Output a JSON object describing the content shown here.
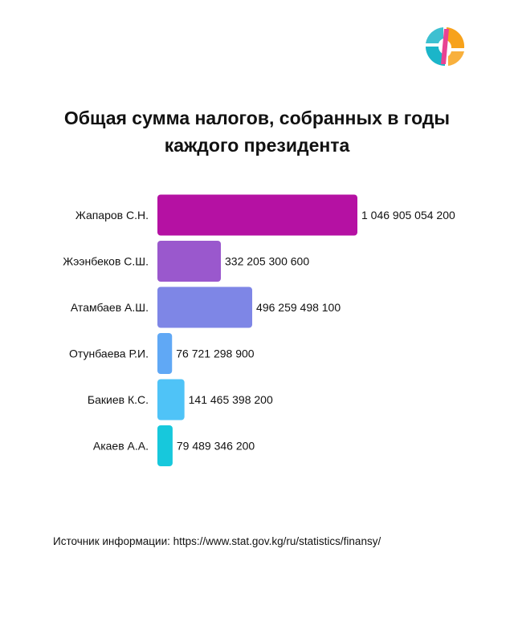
{
  "brand": {
    "logo_icon": "brand-logo-icon",
    "colors": {
      "magenta": "#E84393",
      "teal": "#1BB5C9",
      "orange": "#F7A21B"
    }
  },
  "chart_data": {
    "type": "bar",
    "orientation": "horizontal",
    "title": "Общая сумма налогов, собранных в годы каждого президента",
    "title_lines": [
      "Общая сумма налогов, собранных в годы",
      "каждого президента"
    ],
    "categories": [
      "Жапаров С.Н.",
      "Жээнбеков С.Ш.",
      "Атамбаев А.Ш.",
      "Отунбаева Р.И.",
      "Бакиев К.С.",
      "Акаев А.А."
    ],
    "values": [
      1046905054200,
      332205300600,
      496259498100,
      76721298900,
      141465398200,
      79489346200
    ],
    "value_labels": [
      "1 046 905 054 200",
      "332 205 300 600",
      "496 259 498 100",
      "76 721 298 900",
      "141 465 398 200",
      "79 489 346 200"
    ],
    "colors": [
      "#B511A3",
      "#9A58CD",
      "#7E86E6",
      "#60A8F5",
      "#4FC3F7",
      "#17C8DC"
    ],
    "xlim": [
      0,
      1046905054200
    ],
    "grid": false,
    "legend": "none"
  },
  "footer": {
    "source": "Источник информации: https://www.stat.gov.kg/ru/statistics/finansy/"
  }
}
